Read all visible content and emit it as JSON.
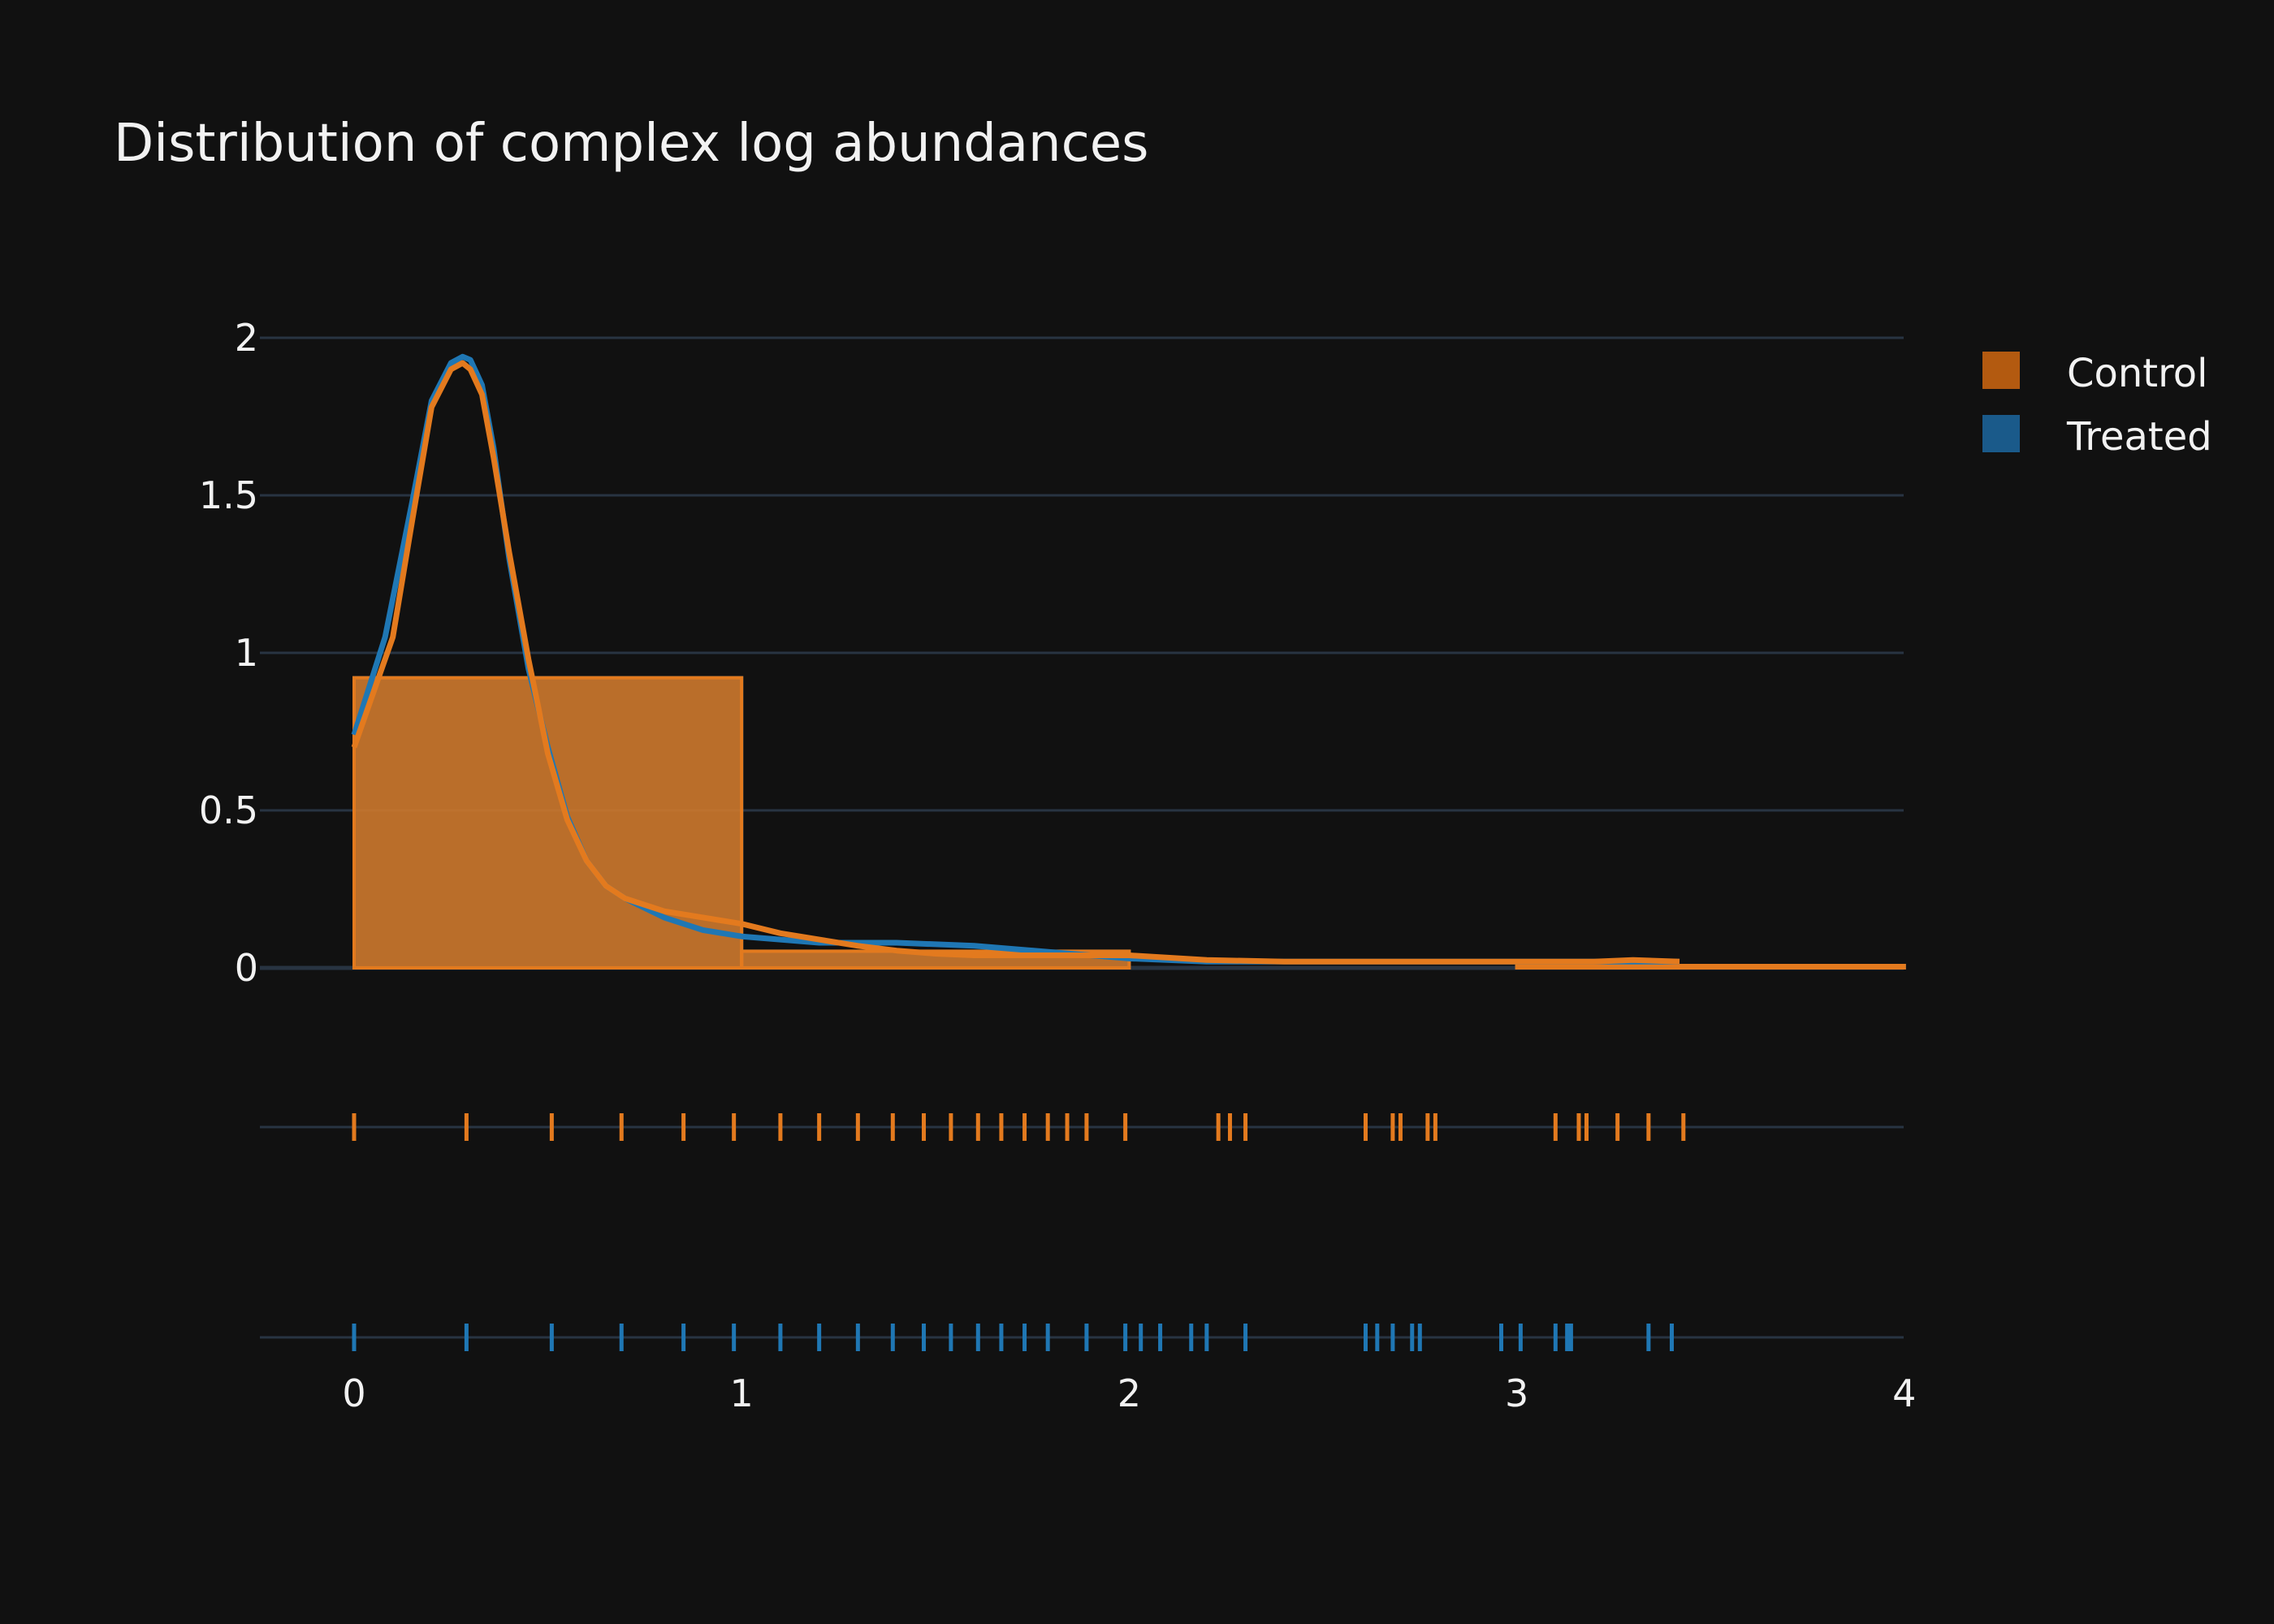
{
  "chart_data": {
    "type": "bar",
    "title": "Distribution of complex log abundances",
    "xlabel": "",
    "ylabel": "",
    "xlim": [
      0,
      4
    ],
    "ylim": [
      0,
      2
    ],
    "x_ticks": [
      "0",
      "1",
      "2",
      "3",
      "4"
    ],
    "y_ticks": [
      "0",
      "0.5",
      "1",
      "1.5",
      "2"
    ],
    "grid": true,
    "legend_position": "top-right",
    "colors": {
      "control": "#e37a1e",
      "treated": "#1f77b4",
      "background": "#111111",
      "grid": "#283442"
    },
    "histogram": {
      "bins": [
        [
          0,
          1
        ],
        [
          1,
          2
        ],
        [
          2,
          3
        ],
        [
          3,
          4
        ]
      ],
      "series": [
        {
          "name": "Control",
          "values": [
            0.921,
            0.053,
            0.0,
            0.0053
          ]
        },
        {
          "name": "Treated",
          "values": [
            0.921,
            0.053,
            0.0,
            0.0053
          ]
        }
      ]
    },
    "kde": {
      "series": [
        {
          "x": [
            0,
            0.1,
            0.15,
            0.2,
            0.25,
            0.28,
            0.3,
            0.33,
            0.36,
            0.4,
            0.45,
            0.5,
            0.55,
            0.6,
            0.65,
            0.7,
            0.8,
            0.9,
            1.0,
            1.1,
            1.2,
            1.3,
            1.4,
            1.5,
            1.6,
            1.8,
            2.0,
            2.2,
            2.4,
            2.6,
            2.8,
            3.0,
            3.2,
            3.3,
            3.42
          ],
          "values": [
            0.7,
            1.05,
            1.42,
            1.78,
            1.9,
            1.92,
            1.9,
            1.82,
            1.62,
            1.32,
            0.98,
            0.68,
            0.47,
            0.34,
            0.26,
            0.22,
            0.18,
            0.16,
            0.14,
            0.11,
            0.09,
            0.07,
            0.055,
            0.045,
            0.04,
            0.04,
            0.04,
            0.025,
            0.02,
            0.02,
            0.02,
            0.02,
            0.02,
            0.025,
            0.02
          ]
        },
        {
          "x": [
            0,
            0.08,
            0.15,
            0.2,
            0.25,
            0.28,
            0.3,
            0.33,
            0.36,
            0.4,
            0.45,
            0.5,
            0.55,
            0.6,
            0.65,
            0.7,
            0.8,
            0.9,
            1.0,
            1.2,
            1.4,
            1.6,
            1.8,
            2.0,
            2.2,
            2.5,
            2.8,
            3.0,
            3.2,
            3.3,
            3.42
          ],
          "values": [
            0.74,
            1.05,
            1.48,
            1.8,
            1.92,
            1.94,
            1.93,
            1.85,
            1.65,
            1.3,
            0.95,
            0.7,
            0.48,
            0.34,
            0.26,
            0.22,
            0.16,
            0.12,
            0.1,
            0.08,
            0.08,
            0.07,
            0.05,
            0.03,
            0.02,
            0.02,
            0.02,
            0.02,
            0.02,
            0.02,
            0.02
          ]
        }
      ]
    },
    "rug": {
      "series": [
        {
          "name": "Control",
          "x": [
            0,
            0.29,
            0.51,
            0.69,
            0.85,
            0.98,
            1.1,
            1.2,
            1.3,
            1.39,
            1.47,
            1.54,
            1.61,
            1.67,
            1.73,
            1.79,
            1.84,
            1.89,
            1.99,
            2.23,
            2.26,
            2.3,
            2.61,
            2.68,
            2.7,
            2.77,
            2.79,
            3.1,
            3.16,
            3.18,
            3.26,
            3.34,
            3.43
          ]
        },
        {
          "name": "Treated",
          "x": [
            0,
            0.29,
            0.51,
            0.69,
            0.85,
            0.98,
            1.1,
            1.2,
            1.3,
            1.39,
            1.47,
            1.54,
            1.61,
            1.67,
            1.73,
            1.79,
            1.89,
            1.99,
            2.03,
            2.08,
            2.16,
            2.2,
            2.3,
            2.61,
            2.64,
            2.68,
            2.73,
            2.75,
            2.96,
            3.01,
            3.1,
            3.13,
            3.14,
            3.34,
            3.4
          ]
        }
      ]
    }
  }
}
